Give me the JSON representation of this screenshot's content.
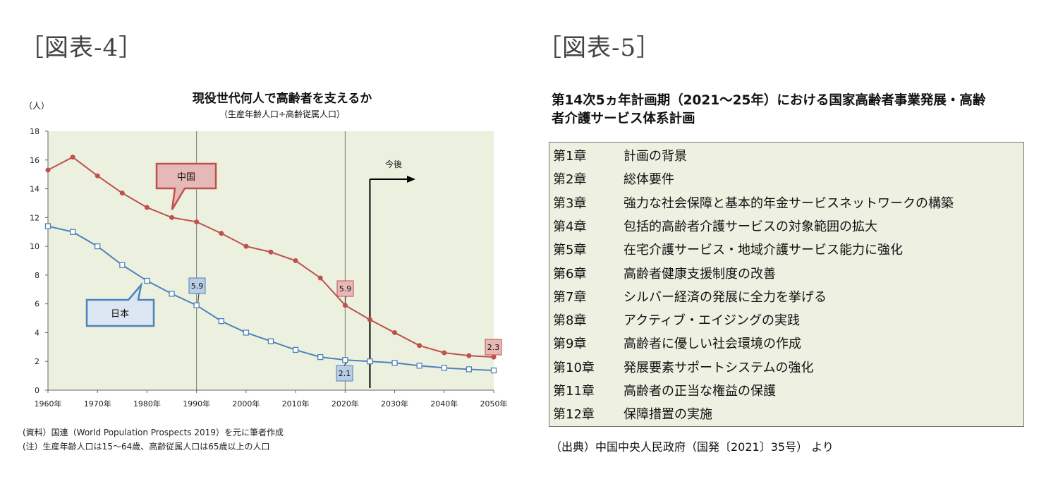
{
  "fig4": {
    "label": "［図表-4］",
    "notes": [
      "(資料）国連（World Population Prospects 2019）を元に筆者作成",
      "(注）生産年齢人口は15～64歳、高齢従属人口は65歳以上の人口"
    ]
  },
  "fig5": {
    "label": "［図表-5］",
    "title_line1": "第14次5ヵ年計画期（2021～25年）における国家高齢者事業発展・高齢",
    "title_line2": "者介護サービス体系計画",
    "rows": [
      {
        "chapter": "第1章",
        "text": "計画の背景"
      },
      {
        "chapter": "第2章",
        "text": "総体要件"
      },
      {
        "chapter": "第3章",
        "text": "強力な社会保障と基本的年金サービスネットワークの構築"
      },
      {
        "chapter": "第4章",
        "text": "包括的高齢者介護サービスの対象範囲の拡大"
      },
      {
        "chapter": "第5章",
        "text": "在宅介護サービス・地域介護サービス能力に強化"
      },
      {
        "chapter": "第6章",
        "text": "高齢者健康支援制度の改善"
      },
      {
        "chapter": "第7章",
        "text": "シルバー経済の発展に全力を挙げる"
      },
      {
        "chapter": "第8章",
        "text": "アクティブ・エイジングの実践"
      },
      {
        "chapter": "第9章",
        "text": "高齢者に優しい社会環境の作成"
      },
      {
        "chapter": "第10章",
        "text": "発展要素サポートシステムの強化"
      },
      {
        "chapter": "第11章",
        "text": "高齢者の正当な権益の保護"
      },
      {
        "chapter": "第12章",
        "text": "保障措置の実施"
      }
    ],
    "source": "（出典）中国中央人民政府（国発〔2021〕35号） より"
  },
  "chart_data": {
    "type": "line",
    "title": "現役世代何人で高齢者を支えるか",
    "subtitle": "（生産年齢人口÷高齢従属人口）",
    "ylabel": "（人）",
    "ylim": [
      0,
      18
    ],
    "yticks": [
      0,
      2,
      4,
      6,
      8,
      10,
      12,
      14,
      16,
      18
    ],
    "xlim": [
      1960,
      2050
    ],
    "xticks": [
      1960,
      1970,
      1980,
      1990,
      2000,
      2010,
      2020,
      2030,
      2040,
      2050
    ],
    "xtick_labels": [
      "1960年",
      "1970年",
      "1980年",
      "1990年",
      "2000年",
      "2010年",
      "2020年",
      "2030年",
      "2040年",
      "2050年"
    ],
    "x": [
      1960,
      1965,
      1970,
      1975,
      1980,
      1985,
      1990,
      1995,
      2000,
      2005,
      2010,
      2015,
      2020,
      2025,
      2030,
      2035,
      2040,
      2045,
      2050
    ],
    "series": [
      {
        "name": "中国",
        "color": "#c0504d",
        "marker": "circle",
        "values": [
          15.3,
          16.2,
          14.9,
          13.7,
          12.7,
          12.0,
          11.7,
          10.9,
          10.0,
          9.6,
          9.0,
          7.8,
          5.9,
          4.9,
          4.0,
          3.1,
          2.6,
          2.4,
          2.3
        ]
      },
      {
        "name": "日本",
        "color": "#4f81bd",
        "marker": "square",
        "values": [
          11.4,
          11.0,
          10.0,
          8.7,
          7.6,
          6.7,
          5.9,
          4.8,
          4.0,
          3.4,
          2.8,
          2.3,
          2.1,
          2.0,
          1.9,
          1.7,
          1.55,
          1.45,
          1.37
        ]
      }
    ],
    "vlines": [
      1990,
      2020
    ],
    "annotation_future": {
      "label": "今後",
      "x": 2025
    },
    "data_labels": [
      {
        "series": "中国",
        "x": 2020,
        "text": "5.9"
      },
      {
        "series": "中国",
        "x": 2050,
        "text": "2.3"
      },
      {
        "series": "日本",
        "x": 1990,
        "text": "5.9"
      },
      {
        "series": "日本",
        "x": 2020,
        "text": "2.1"
      }
    ],
    "grid": false,
    "plot_background": "#ebf1de"
  }
}
